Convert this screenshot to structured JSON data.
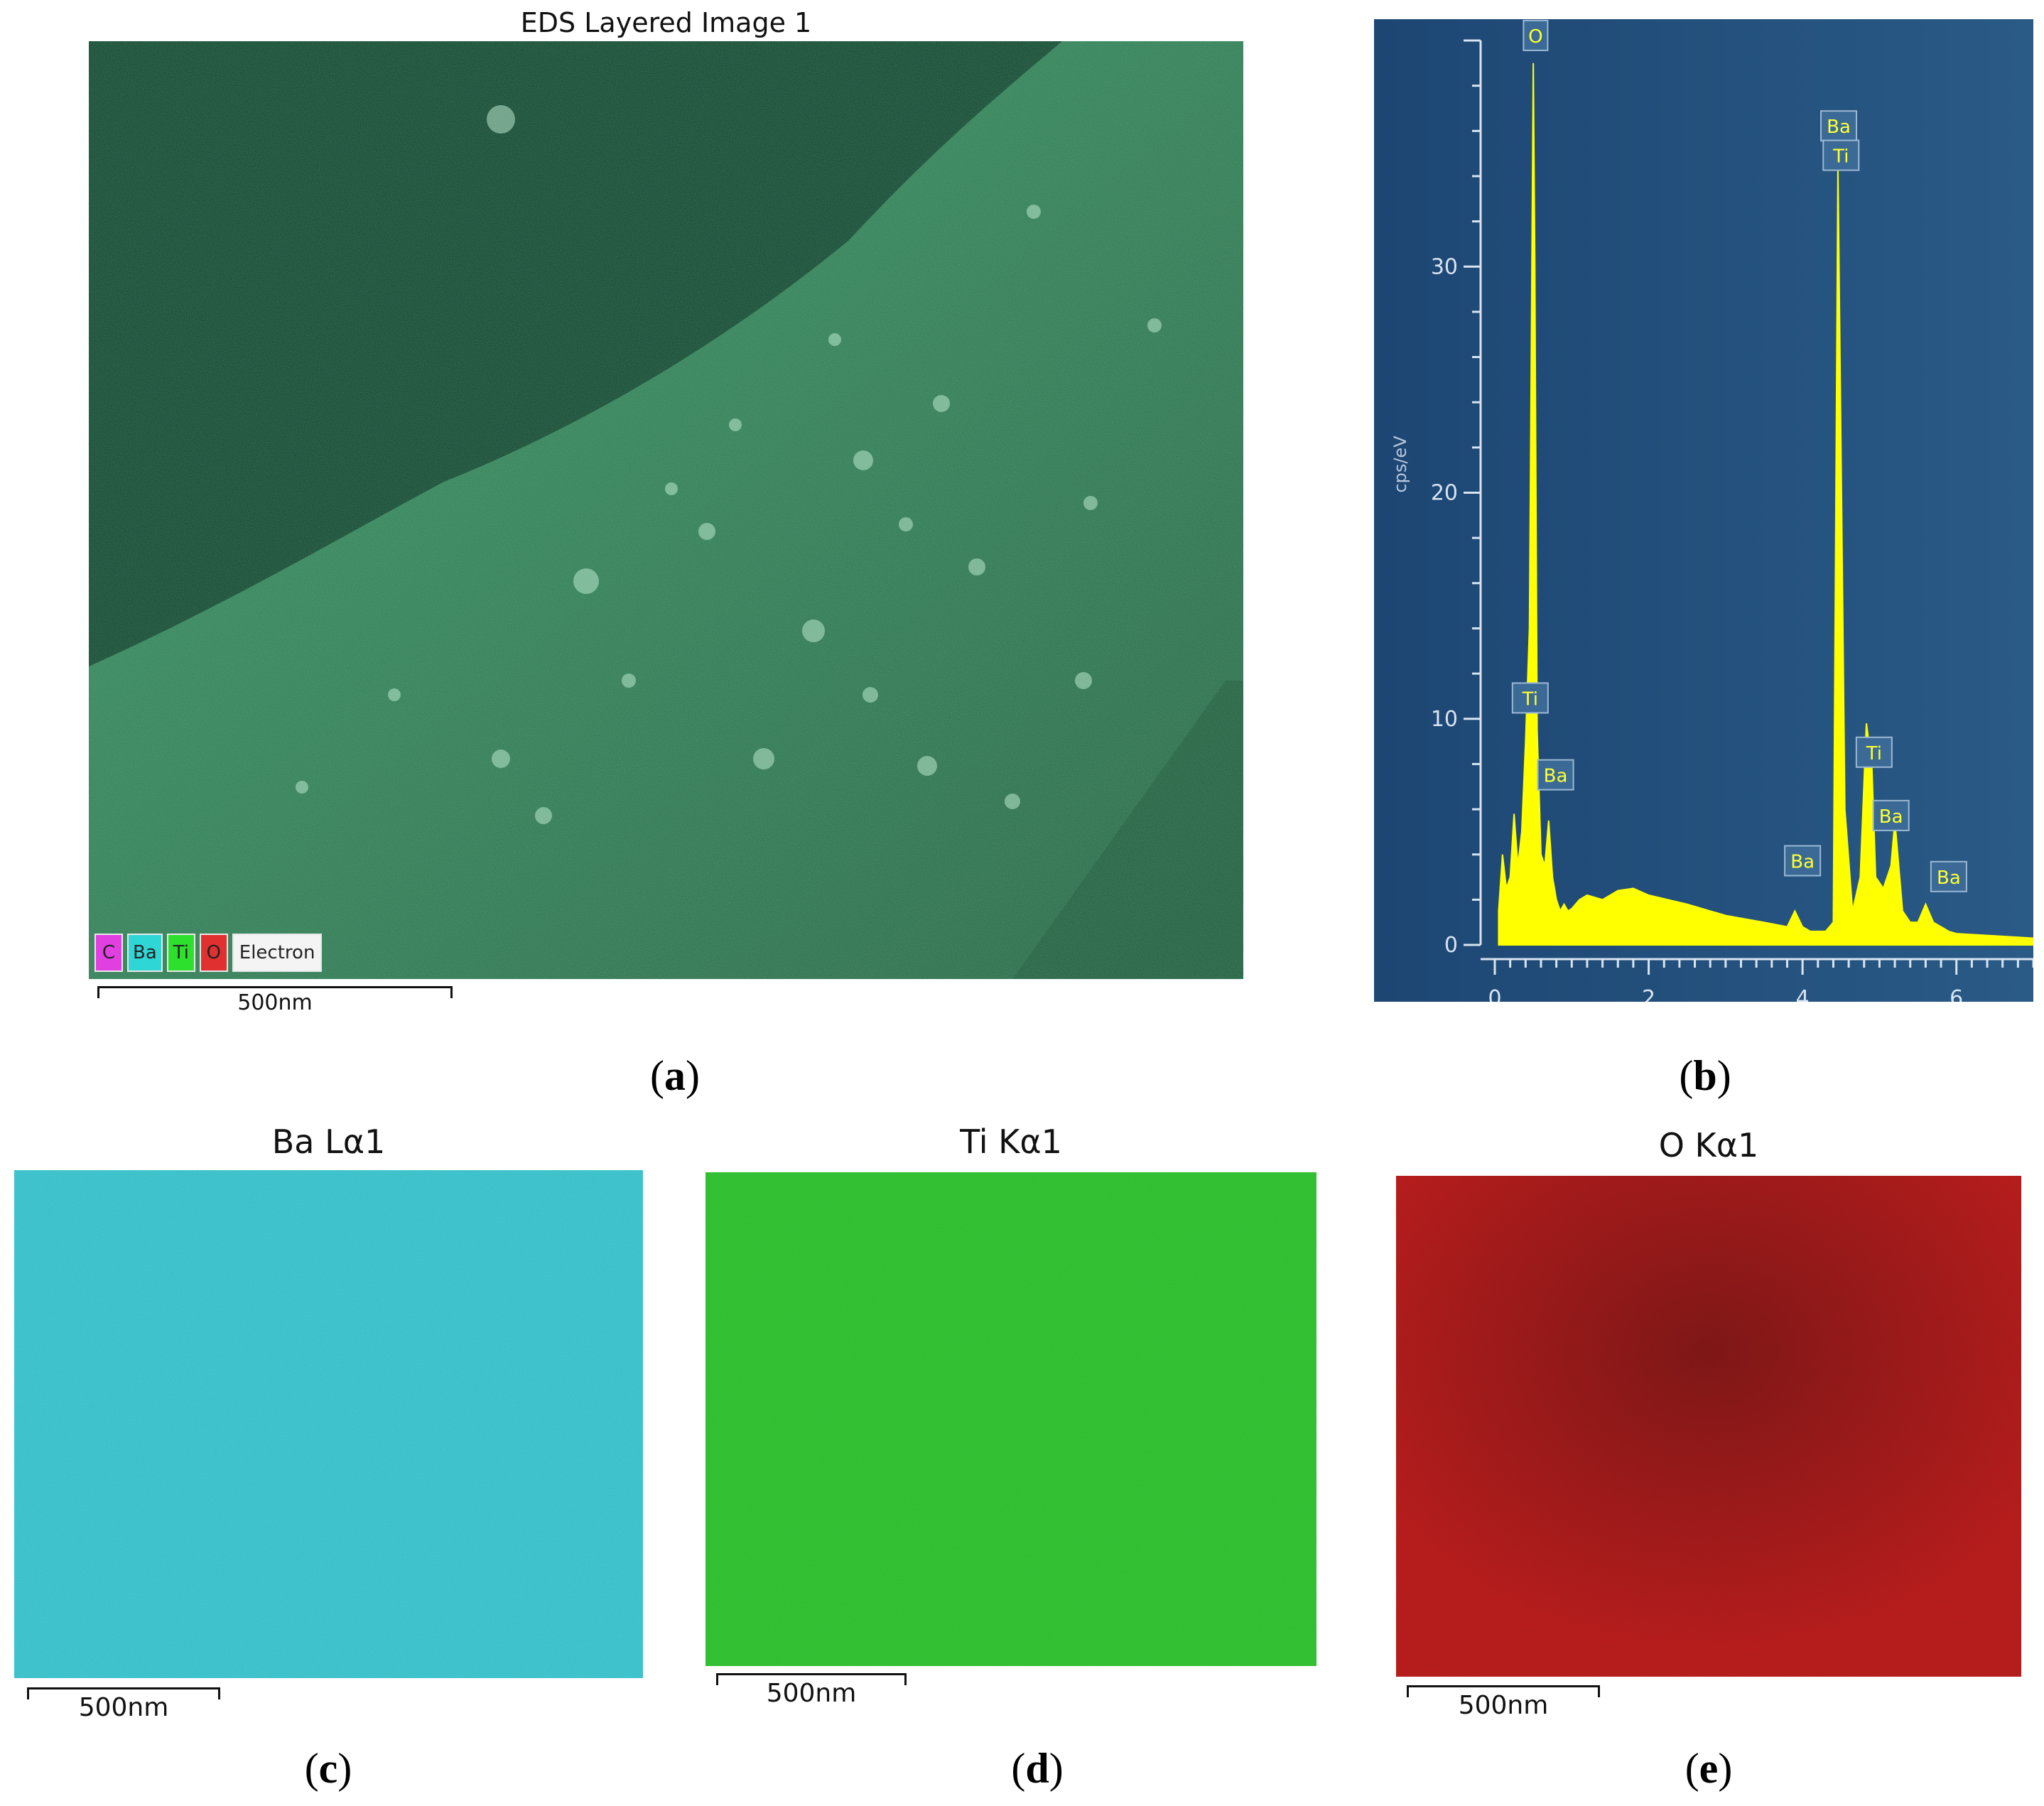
{
  "panel_a": {
    "title": "EDS Layered Image 1",
    "label_letter": "a",
    "legend": [
      {
        "text": "C",
        "color": "#e040e0"
      },
      {
        "text": "Ba",
        "color": "#2fd6d6"
      },
      {
        "text": "Ti",
        "color": "#2ee02e"
      },
      {
        "text": "O",
        "color": "#e03030"
      },
      {
        "text": "Electron",
        "color": "#f4f4f4"
      }
    ],
    "scale_bar": "500nm"
  },
  "panel_b": {
    "label_letter": "b",
    "chart_data": {
      "type": "line",
      "xlabel": "",
      "ylabel": "cps/eV",
      "xlim": [
        0,
        7
      ],
      "ylim": [
        0,
        40
      ],
      "x_ticks": [
        "0",
        "2",
        "4",
        "6"
      ],
      "y_ticks": [
        "0",
        "10",
        "20",
        "30"
      ],
      "x": [
        0.05,
        0.1,
        0.15,
        0.2,
        0.25,
        0.3,
        0.35,
        0.4,
        0.45,
        0.5,
        0.52,
        0.55,
        0.6,
        0.65,
        0.7,
        0.75,
        0.8,
        0.85,
        0.9,
        0.95,
        1.0,
        1.1,
        1.2,
        1.4,
        1.6,
        1.8,
        2.0,
        2.5,
        3.0,
        3.5,
        3.8,
        3.9,
        4.0,
        4.1,
        4.2,
        4.3,
        4.4,
        4.46,
        4.55,
        4.65,
        4.75,
        4.83,
        4.9,
        4.95,
        5.05,
        5.15,
        5.2,
        5.3,
        5.4,
        5.5,
        5.6,
        5.7,
        5.8,
        5.9,
        6.0,
        6.5,
        7.0
      ],
      "y": [
        1.5,
        4.0,
        2.5,
        3.0,
        5.8,
        3.5,
        5.0,
        9.0,
        14.0,
        39.0,
        30.0,
        9.5,
        4.0,
        3.5,
        5.5,
        3.0,
        2.0,
        1.5,
        1.8,
        1.5,
        1.6,
        2.0,
        2.2,
        2.0,
        2.4,
        2.5,
        2.2,
        1.8,
        1.3,
        1.0,
        0.8,
        1.5,
        0.8,
        0.6,
        0.6,
        0.6,
        1.0,
        34.5,
        6.0,
        1.5,
        3.0,
        9.8,
        8.0,
        3.0,
        2.5,
        3.5,
        5.5,
        1.5,
        1.0,
        1.0,
        1.8,
        1.0,
        0.8,
        0.6,
        0.5,
        0.4,
        0.3
      ],
      "peak_labels": [
        {
          "text": "O",
          "x": 0.53,
          "y": 39.5
        },
        {
          "text": "Ti",
          "x": 0.46,
          "y": 10.2
        },
        {
          "text": "Ba",
          "x": 0.79,
          "y": 6.8
        },
        {
          "text": "Ba",
          "x": 4.0,
          "y": 3.0
        },
        {
          "text": "Ba",
          "x": 4.47,
          "y": 35.5
        },
        {
          "text": "Ti",
          "x": 4.5,
          "y": 34.2
        },
        {
          "text": "Ti",
          "x": 4.93,
          "y": 7.8
        },
        {
          "text": "Ba",
          "x": 5.15,
          "y": 5.0
        },
        {
          "text": "Ba",
          "x": 5.9,
          "y": 2.3
        }
      ],
      "line_color": "#ffff00",
      "background_color": "#1f4d7a"
    }
  },
  "panel_c": {
    "title": "Ba Lα1",
    "label_letter": "c",
    "scale_bar": "500nm",
    "color": "#3fcfd8"
  },
  "panel_d": {
    "title": "Ti Kα1",
    "label_letter": "d",
    "scale_bar": "500nm",
    "color": "#2ecc2e"
  },
  "panel_e": {
    "title": "O Kα1",
    "label_letter": "e",
    "scale_bar": "500nm",
    "color": "#c81818"
  }
}
